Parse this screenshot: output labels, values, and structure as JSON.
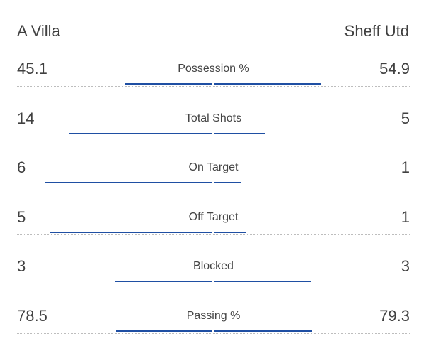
{
  "teams": {
    "home": "A Villa",
    "away": "Sheff Utd"
  },
  "accent_color": "#1f4fa3",
  "stats": [
    {
      "label": "Possession %",
      "home": "45.1",
      "away": "54.9",
      "home_value": 45.1,
      "away_value": 54.9
    },
    {
      "label": "Total Shots",
      "home": "14",
      "away": "5",
      "home_value": 14,
      "away_value": 5
    },
    {
      "label": "On Target",
      "home": "6",
      "away": "1",
      "home_value": 6,
      "away_value": 1
    },
    {
      "label": "Off Target",
      "home": "5",
      "away": "1",
      "home_value": 5,
      "away_value": 1
    },
    {
      "label": "Blocked",
      "home": "3",
      "away": "3",
      "home_value": 3,
      "away_value": 3
    },
    {
      "label": "Passing %",
      "home": "78.5",
      "away": "79.3",
      "home_value": 78.5,
      "away_value": 79.3
    }
  ]
}
